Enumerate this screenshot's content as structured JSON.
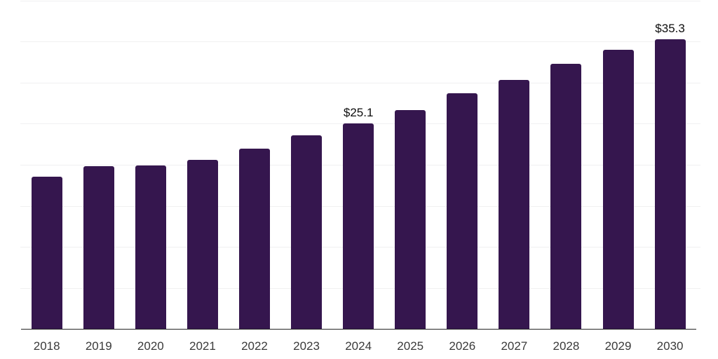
{
  "colors": {
    "background": "#ffffff",
    "bar": "#35164e",
    "axis_line": "#262626",
    "gridline": "#f0f0f1",
    "tick_label": "#3a3a3a",
    "data_label": "#0d0d0d"
  },
  "chart_data": {
    "type": "bar",
    "categories": [
      "2018",
      "2019",
      "2020",
      "2021",
      "2022",
      "2023",
      "2024",
      "2025",
      "2026",
      "2027",
      "2028",
      "2029",
      "2030"
    ],
    "values": [
      18.6,
      19.9,
      20.0,
      20.6,
      22.0,
      23.6,
      25.1,
      26.7,
      28.7,
      30.4,
      32.3,
      34.0,
      35.3
    ],
    "data_labels": [
      {
        "category": "2024",
        "text": "$25.1"
      },
      {
        "category": "2030",
        "text": "$35.3"
      }
    ],
    "ylim": [
      0,
      40
    ],
    "gridline_step": 5,
    "grid": true,
    "y_axis_labels_visible": false,
    "legend": false,
    "value_prefix": "$"
  }
}
